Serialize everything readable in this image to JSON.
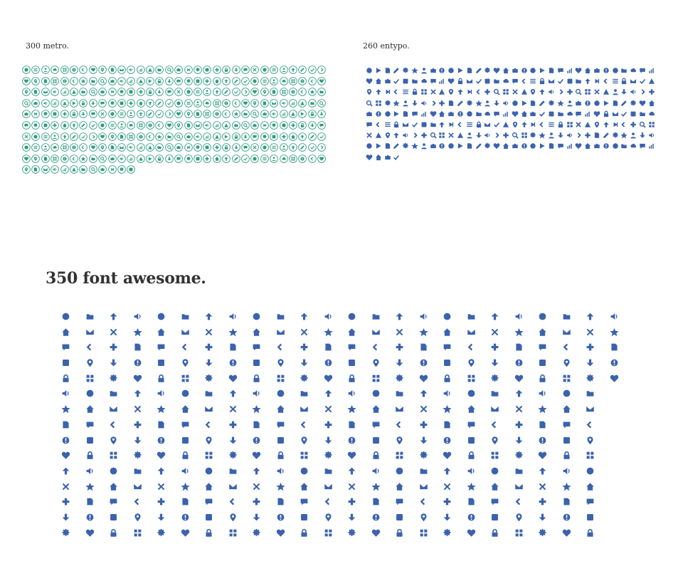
{
  "sections": {
    "metro": {
      "title": "300 metro.",
      "count": 300,
      "color": "#2e9c7e",
      "columns": 32
    },
    "entypo": {
      "title": "260 entypo.",
      "count": 260,
      "color": "#3a63ae",
      "columns": 32
    },
    "font_awesome": {
      "title": "350 font awesome.",
      "count": 350,
      "color": "#3a63ae",
      "columns": 24
    }
  }
}
